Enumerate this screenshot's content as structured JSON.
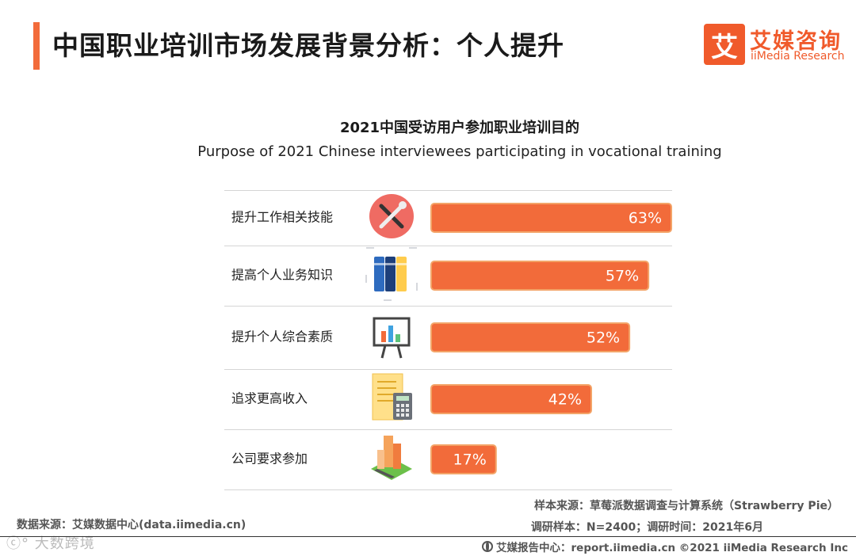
{
  "header": {
    "title": "中国职业培训市场发展背景分析：个人提升",
    "brand_cn": "艾媒咨询",
    "brand_en": "iiMedia Research",
    "brand_mark": "艾"
  },
  "chart_data": {
    "type": "bar",
    "orientation": "horizontal",
    "title": "2021中国受访用户参加职业培训目的",
    "subtitle": "Purpose of 2021 Chinese interviewees participating in vocational training",
    "categories": [
      "提升工作相关技能",
      "提高个人业务知识",
      "提升个人综合素质",
      "追求更高收入",
      "公司要求参加"
    ],
    "values": [
      63,
      57,
      52,
      42,
      17
    ],
    "value_labels": [
      "63%",
      "57%",
      "52%",
      "42%",
      "17%"
    ],
    "icons": [
      "tools-icon",
      "books-icon",
      "presentation-board-icon",
      "calculator-document-icon",
      "buildings-icon"
    ],
    "xlim": [
      0,
      100
    ],
    "bar_color": "#f26b3a",
    "bar_border_color": "#f3a468",
    "grid": false,
    "legend": "none"
  },
  "footer": {
    "data_source": "数据来源：艾媒数据中心(data.iimedia.cn)",
    "sample_source": "样本来源：草莓派数据调查与计算系统（Strawberry Pie）",
    "sample_info": "调研样本：N=2400；调研时间：2021年6月",
    "report_center": "艾媒报告中心：report.iimedia.cn   ©2021  iiMedia Research  Inc",
    "watermark": "ⓒ° 大数跨境"
  },
  "colors": {
    "accent": "#f26b3a",
    "brand": "#f05a2b"
  }
}
